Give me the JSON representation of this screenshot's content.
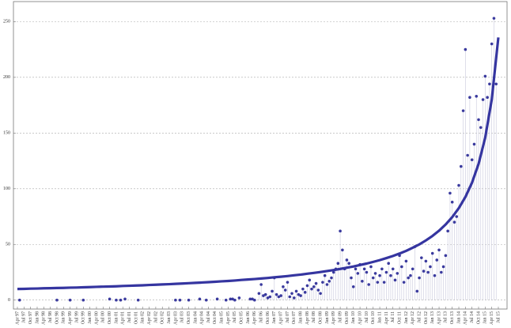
{
  "chart_data": {
    "type": "scatter",
    "categories": [
      "Apr 97",
      null,
      null,
      "Jul 97",
      null,
      null,
      "Oct 97",
      null,
      null,
      "Jan 98",
      null,
      null,
      "Apr 98",
      null,
      null,
      "Jul 98",
      null,
      null,
      "Oct 98",
      null,
      null,
      "Jan 99",
      null,
      null,
      "Apr 99",
      null,
      null,
      "Jul 99",
      null,
      null,
      "Oct 99",
      null,
      null,
      "Jan 00",
      null,
      null,
      "Apr 00",
      null,
      null,
      "Jul 00",
      null,
      null,
      "Oct 00",
      null,
      null,
      "Jan 01",
      null,
      null,
      "Apr 01",
      null,
      null,
      "Jul 01",
      null,
      null,
      "Oct 01",
      null,
      null,
      "Jan 02",
      null,
      null,
      "Apr 02",
      null,
      null,
      "Jul 02",
      null,
      null,
      "Oct 02",
      null,
      null,
      "Jan 03",
      null,
      null,
      "Apr 03",
      null,
      null,
      "Jul 03",
      null,
      null,
      "Oct 03",
      null,
      null,
      "Jan 04",
      null,
      null,
      "Apr 04",
      null,
      null,
      "Jul 04",
      null,
      null,
      "Oct 04",
      null,
      null,
      "Jan 05",
      null,
      null,
      "Apr 05",
      null,
      null,
      "Jul 05",
      null,
      null,
      "Oct 05",
      null,
      null,
      "Jan 06",
      null,
      null,
      "Apr 06",
      null,
      null,
      "Jul 06",
      null,
      null,
      "Oct 06",
      null,
      null,
      "Jan 07",
      null,
      null,
      "Apr 07",
      null,
      null,
      "Jul 07",
      null,
      null,
      "Oct 07",
      null,
      null,
      "Jan 08",
      null,
      null,
      "Apr 08",
      null,
      null,
      "Jul 08",
      null,
      null,
      "Oct 08",
      null,
      null,
      "Jan 09",
      null,
      null,
      "Apr 09",
      null,
      null,
      "Jul 09",
      null,
      null,
      "Oct 09",
      null,
      null,
      "Jan 10",
      null,
      null,
      "Apr 10",
      null,
      null,
      "Jul 10",
      null,
      null,
      "Oct 10",
      null,
      null,
      "Jan 11",
      null,
      null,
      "Apr 11",
      null,
      null,
      "Jul 11",
      null,
      null,
      "Oct 11",
      null,
      null,
      "Jan 12",
      null,
      null,
      "Apr 12",
      null,
      null,
      "Jul 12",
      null,
      null,
      "Oct 12",
      null,
      null,
      "Jan 13",
      null,
      null,
      "Apr 13",
      null,
      null,
      "Jul 13",
      null,
      null,
      "Oct 13",
      null,
      null,
      "Jan 14",
      null,
      null,
      "Apr 14",
      null,
      null,
      "Jul 14",
      null,
      null,
      "Oct 14",
      null,
      null,
      "Jan 15",
      null,
      null,
      "Apr 15",
      null,
      null,
      "Jul 15"
    ],
    "series": [
      {
        "type": "scatter",
        "color": "#3a3a9e",
        "stem_color": "#c8c8dc",
        "values": [
          null,
          0,
          null,
          null,
          null,
          null,
          null,
          null,
          null,
          null,
          null,
          null,
          null,
          null,
          null,
          null,
          null,
          null,
          0,
          null,
          null,
          null,
          null,
          null,
          0,
          null,
          null,
          null,
          null,
          null,
          0,
          null,
          null,
          null,
          null,
          null,
          null,
          null,
          null,
          null,
          null,
          null,
          1,
          null,
          null,
          0,
          null,
          0,
          null,
          1,
          null,
          null,
          null,
          null,
          null,
          0,
          null,
          null,
          null,
          null,
          null,
          null,
          null,
          null,
          null,
          null,
          null,
          null,
          null,
          null,
          null,
          null,
          0,
          null,
          0,
          null,
          null,
          null,
          0,
          null,
          null,
          null,
          null,
          1,
          null,
          null,
          0,
          null,
          null,
          null,
          null,
          1,
          null,
          null,
          null,
          0,
          null,
          1,
          1,
          0,
          null,
          2,
          null,
          null,
          null,
          null,
          1,
          1,
          0,
          null,
          6,
          14,
          4,
          5,
          2,
          3,
          8,
          20,
          5,
          3,
          4,
          12,
          9,
          16,
          3,
          6,
          2,
          8,
          5,
          4,
          10,
          7,
          13,
          18,
          10,
          12,
          15,
          9,
          6,
          16,
          22,
          14,
          17,
          20,
          25,
          28,
          33,
          62,
          45,
          28,
          36,
          33,
          20,
          12,
          28,
          24,
          32,
          17,
          28,
          25,
          14,
          30,
          20,
          24,
          16,
          22,
          28,
          16,
          25,
          33,
          22,
          28,
          18,
          24,
          40,
          30,
          16,
          35,
          20,
          22,
          28,
          48,
          8,
          20,
          38,
          26,
          35,
          25,
          30,
          42,
          22,
          36,
          45,
          25,
          30,
          40,
          62,
          96,
          88,
          70,
          75,
          103,
          120,
          170,
          225,
          130,
          182,
          126,
          140,
          183,
          162,
          155,
          180,
          201,
          182,
          194,
          230,
          253,
          194,
          null
        ]
      },
      {
        "type": "line",
        "color": "#3535a0",
        "x": [
          "Apr 97",
          "Jul 97",
          "Oct 97",
          "Jan 98",
          "Apr 98",
          "Jul 98",
          "Oct 98",
          "Jan 99",
          "Apr 99",
          "Jul 99",
          "Oct 99",
          "Jan 00",
          "Apr 00",
          "Jul 00",
          "Oct 00",
          "Jan 01",
          "Apr 01",
          "Jul 01",
          "Oct 01",
          "Jan 02",
          "Apr 02",
          "Jul 02",
          "Oct 02",
          "Jan 03",
          "Apr 03",
          "Jul 03",
          "Oct 03",
          "Jan 04",
          "Apr 04",
          "Jul 04",
          "Oct 04",
          "Jan 05",
          "Apr 05",
          "Jul 05",
          "Oct 05",
          "Jan 06",
          "Apr 06",
          "Jul 06",
          "Oct 06",
          "Jan 07",
          "Apr 07",
          "Jul 07",
          "Oct 07",
          "Jan 08",
          "Apr 08",
          "Jul 08",
          "Oct 08",
          "Jan 09",
          "Apr 09",
          "Jul 09",
          "Oct 09",
          "Jan 10",
          "Apr 10",
          "Jul 10",
          "Oct 10",
          "Jan 11",
          "Apr 11",
          "Jul 11",
          "Oct 11",
          "Jan 12",
          "Apr 12",
          "Jul 12",
          "Oct 12",
          "Jan 13",
          "Apr 13",
          "Jul 13",
          "Oct 13",
          "Jan 14",
          "Apr 14",
          "Jul 14",
          "Oct 14",
          "Jan 15",
          "Apr 15",
          "Jul 15"
        ],
        "values": [
          10.0,
          10.1,
          10.3,
          10.4,
          10.6,
          10.7,
          10.9,
          11.0,
          11.2,
          11.3,
          11.5,
          11.7,
          11.9,
          12.1,
          12.2,
          12.4,
          12.7,
          12.9,
          13.1,
          13.3,
          13.6,
          13.8,
          14.1,
          14.3,
          14.6,
          14.9,
          15.2,
          15.5,
          15.8,
          16.1,
          16.5,
          16.9,
          17.2,
          17.6,
          18.1,
          18.5,
          18.9,
          19.4,
          19.9,
          20.5,
          21.0,
          21.6,
          22.3,
          22.9,
          23.7,
          24.4,
          25.2,
          26.1,
          27.0,
          28.0,
          29.1,
          30.2,
          31.5,
          32.8,
          34.3,
          35.9,
          37.7,
          39.6,
          41.8,
          44.2,
          47.0,
          50.0,
          53.6,
          57.6,
          62.3,
          67.9,
          74.5,
          82.6,
          92.6,
          105.4,
          122.3,
          145.7,
          180.1,
          235.8
        ]
      }
    ],
    "ylim": [
      -8,
      268
    ],
    "yticks": [
      0,
      50,
      100,
      150,
      200,
      250
    ],
    "grid": true
  }
}
